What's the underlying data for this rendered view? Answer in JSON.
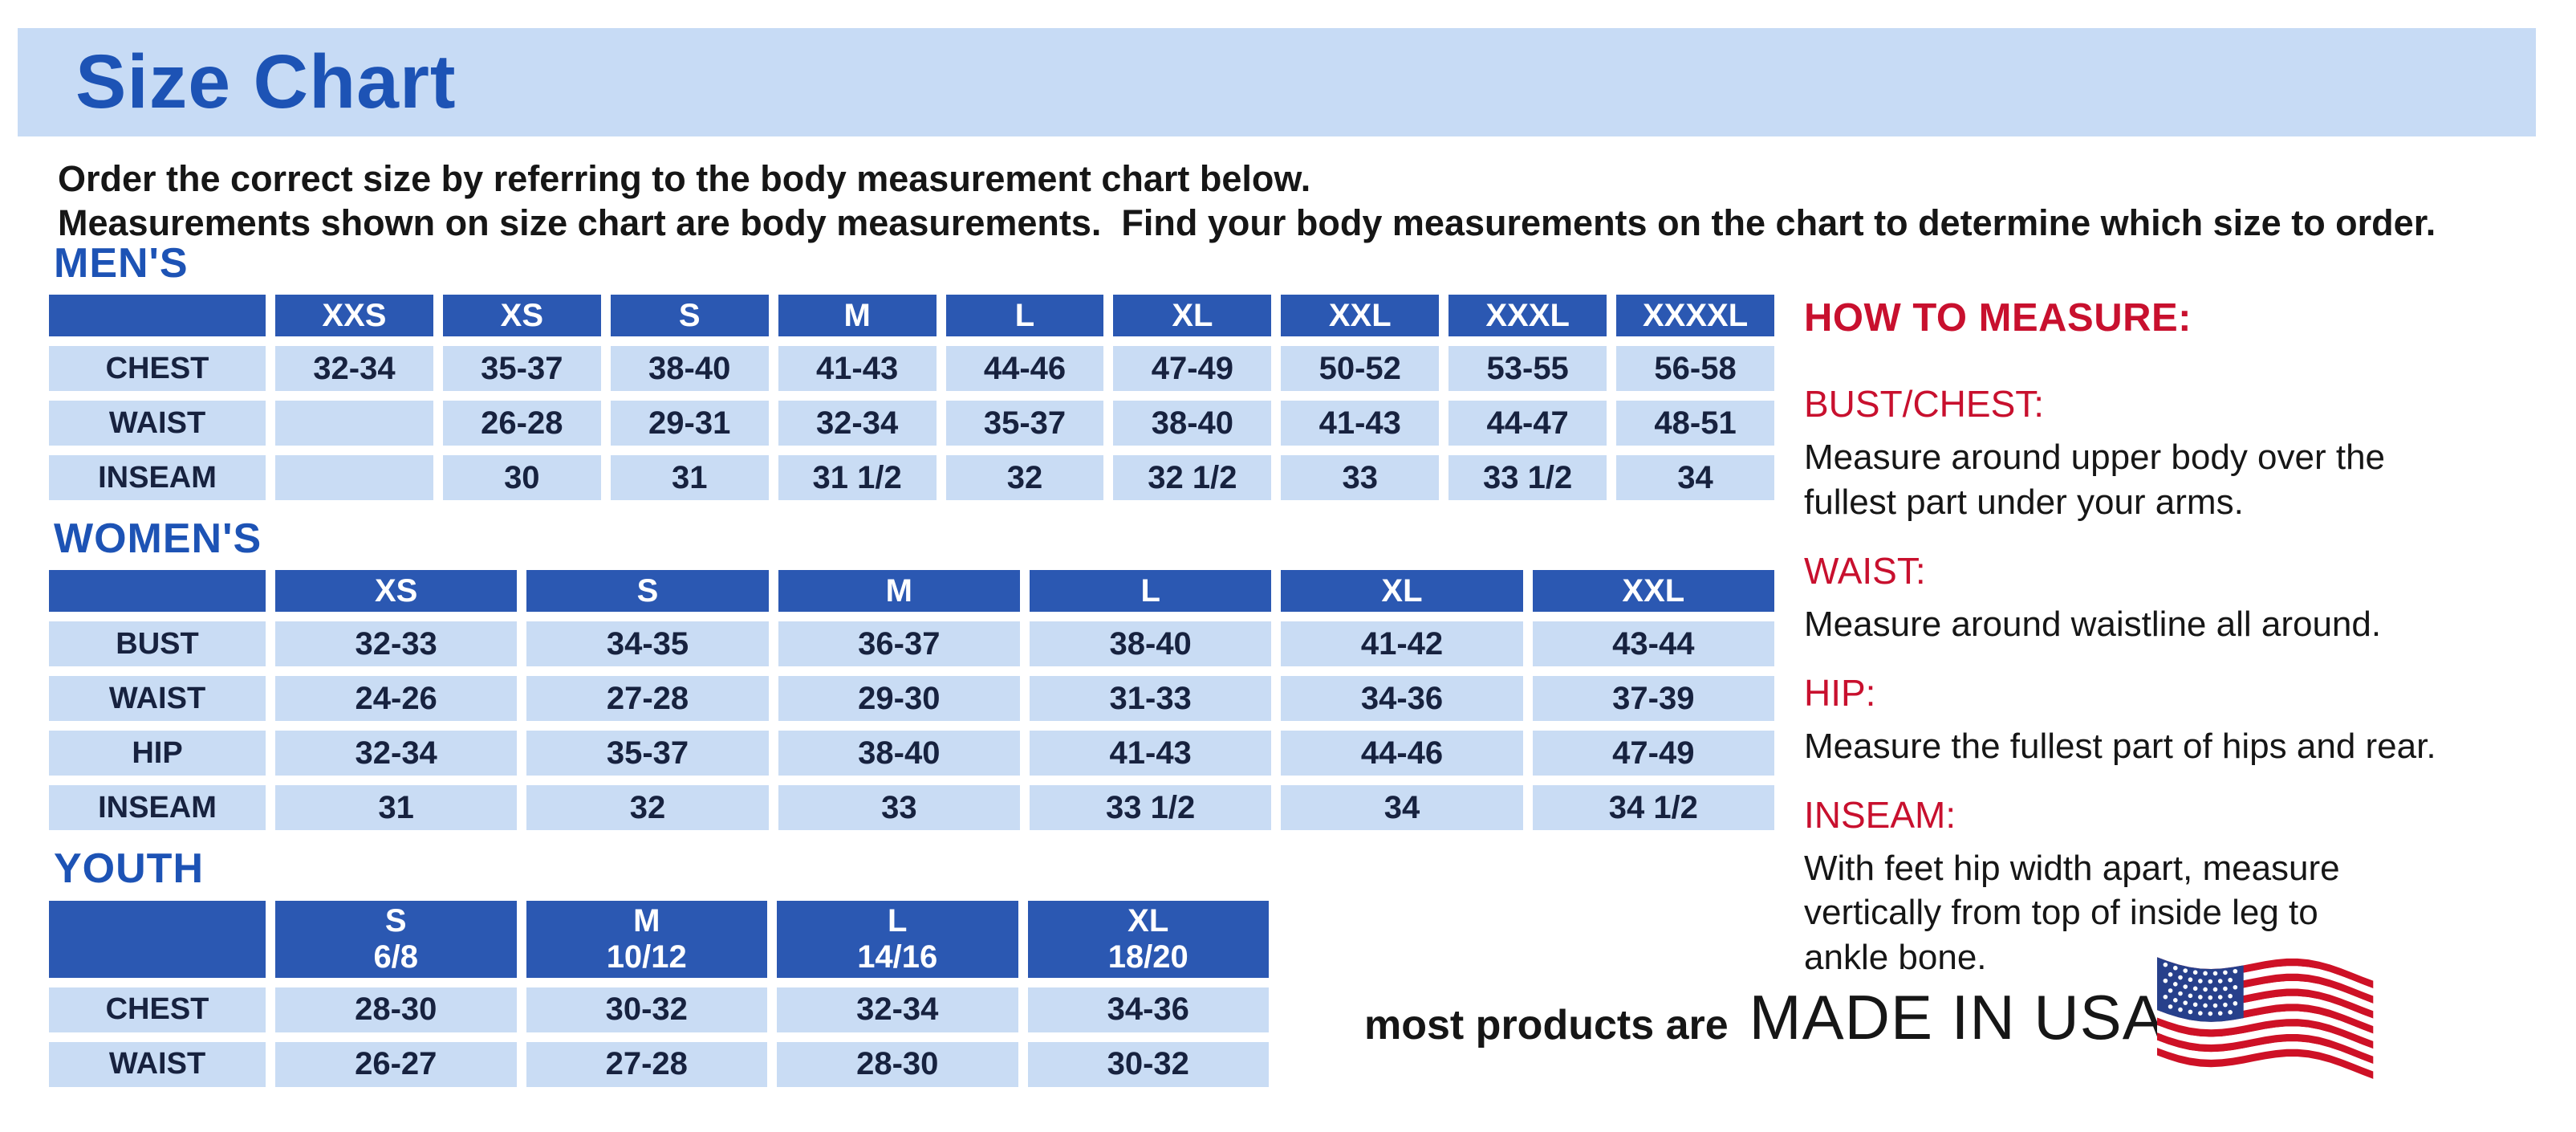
{
  "title": "Size Chart",
  "intro": {
    "text": "Order the correct size by referring to the body measurement chart below.\nMeasurements shown on size chart are body measurements.  Find your body measurements on the chart to determine which size to order."
  },
  "tables": [
    {
      "id": "mens",
      "heading": "MEN'S",
      "columns": [
        "XXS",
        "XS",
        "S",
        "M",
        "L",
        "XL",
        "XXL",
        "XXXL",
        "XXXXL"
      ],
      "rows": [
        {
          "label": "CHEST",
          "values": [
            "32-34",
            "35-37",
            "38-40",
            "41-43",
            "44-46",
            "47-49",
            "50-52",
            "53-55",
            "56-58"
          ]
        },
        {
          "label": "WAIST",
          "values": [
            "",
            "26-28",
            "29-31",
            "32-34",
            "35-37",
            "38-40",
            "41-43",
            "44-47",
            "48-51"
          ]
        },
        {
          "label": "INSEAM",
          "values": [
            "",
            "30",
            "31",
            "31 1/2",
            "32",
            "32 1/2",
            "33",
            "33 1/2",
            "34"
          ]
        }
      ]
    },
    {
      "id": "womens",
      "heading": "WOMEN'S",
      "columns": [
        "XS",
        "S",
        "M",
        "L",
        "XL",
        "XXL"
      ],
      "rows": [
        {
          "label": "BUST",
          "values": [
            "32-33",
            "34-35",
            "36-37",
            "38-40",
            "41-42",
            "43-44"
          ]
        },
        {
          "label": "WAIST",
          "values": [
            "24-26",
            "27-28",
            "29-30",
            "31-33",
            "34-36",
            "37-39"
          ]
        },
        {
          "label": "HIP",
          "values": [
            "32-34",
            "35-37",
            "38-40",
            "41-43",
            "44-46",
            "47-49"
          ]
        },
        {
          "label": "INSEAM",
          "values": [
            "31",
            "32",
            "33",
            "33 1/2",
            "34",
            "34 1/2"
          ]
        }
      ]
    },
    {
      "id": "youth",
      "heading": "YOUTH",
      "columns": [
        "S\n6/8",
        "M\n10/12",
        "L\n14/16",
        "XL\n18/20"
      ],
      "rows": [
        {
          "label": "CHEST",
          "values": [
            "28-30",
            "30-32",
            "32-34",
            "34-36"
          ]
        },
        {
          "label": "WAIST",
          "values": [
            "26-27",
            "27-28",
            "28-30",
            "30-32"
          ]
        }
      ]
    }
  ],
  "how_to_measure": {
    "heading": "HOW TO MEASURE:",
    "items": [
      {
        "term": "BUST/CHEST:",
        "desc": "Measure around upper body over the\nfullest part under your arms."
      },
      {
        "term": "WAIST:",
        "desc": "Measure around waistline all around."
      },
      {
        "term": "HIP:",
        "desc": "Measure the fullest part of hips and rear."
      },
      {
        "term": "INSEAM:",
        "desc": "With feet hip width apart, measure\nvertically from top of inside leg to\nankle bone."
      }
    ]
  },
  "footer": {
    "prefix": "most products are",
    "emphasis": "MADE IN USA",
    "flag_icon": "us-flag-icon"
  },
  "colors": {
    "accent_blue": "#1d53b5",
    "header_blue": "#2b58b2",
    "cell_blue": "#c9dcf4",
    "banner_blue": "#c7dbf5",
    "red": "#c8102e",
    "flag_red": "#ce1126",
    "flag_blue": "#27408b"
  }
}
